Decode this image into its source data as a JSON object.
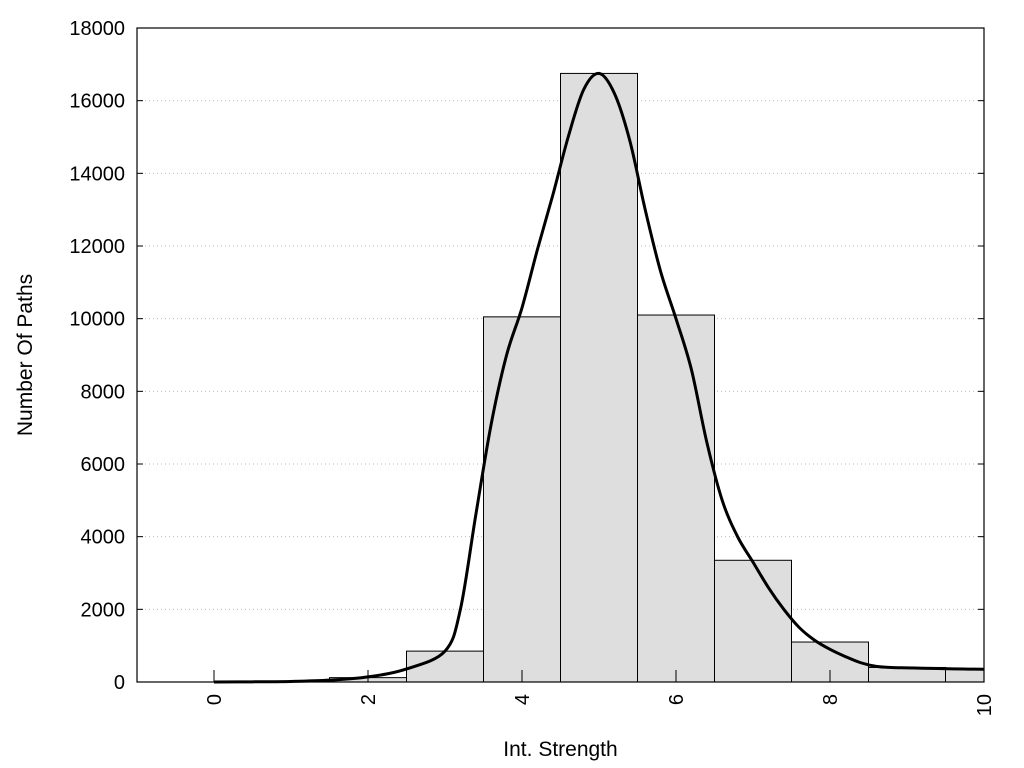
{
  "chart_data": {
    "type": "bar",
    "title": "",
    "xlabel": "Int. Strength",
    "ylabel": "Number Of Paths",
    "xlim": [
      -1,
      10
    ],
    "ylim": [
      0,
      18000
    ],
    "xticks": [
      0,
      2,
      4,
      6,
      8,
      10
    ],
    "yticks": [
      0,
      2000,
      4000,
      6000,
      8000,
      10000,
      12000,
      14000,
      16000,
      18000
    ],
    "grid": "horizontal dotted",
    "bar_width": 1,
    "bars": {
      "x": [
        0,
        1,
        2,
        3,
        4,
        5,
        6,
        7,
        8,
        9,
        10
      ],
      "values": [
        0,
        10,
        120,
        850,
        10050,
        16750,
        10100,
        3350,
        1100,
        400,
        350
      ]
    },
    "series": [
      {
        "type": "line",
        "x": [
          0,
          0.5,
          1,
          1.5,
          2,
          2.5,
          3,
          3.2,
          3.4,
          3.6,
          3.8,
          4,
          4.2,
          4.4,
          4.6,
          4.8,
          5,
          5.2,
          5.4,
          5.6,
          5.8,
          6,
          6.2,
          6.4,
          6.6,
          6.8,
          7,
          7.2,
          7.4,
          7.6,
          7.8,
          8,
          8.2,
          8.4,
          8.6,
          8.8,
          9,
          9.2,
          9.4,
          9.6,
          9.8,
          10
        ],
        "y": [
          0,
          5,
          15,
          50,
          140,
          360,
          850,
          2000,
          4600,
          7100,
          9000,
          10300,
          11900,
          13400,
          15000,
          16300,
          16750,
          16200,
          14900,
          13000,
          11300,
          10000,
          8600,
          6600,
          5000,
          4000,
          3300,
          2600,
          2000,
          1500,
          1150,
          900,
          700,
          530,
          430,
          400,
          390,
          380,
          370,
          360,
          355,
          350
        ]
      }
    ]
  }
}
